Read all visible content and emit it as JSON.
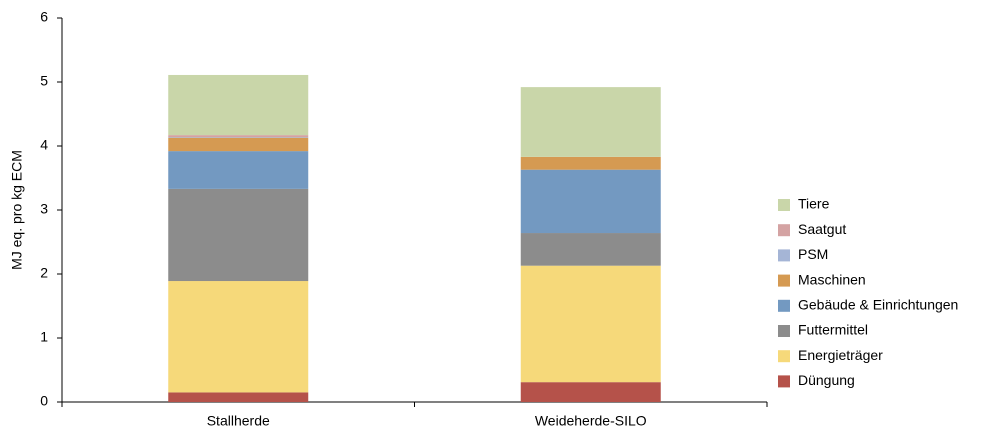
{
  "chart_data": {
    "type": "stacked_bar",
    "y_label": "MJ eq. pro kg ECM",
    "categories": [
      "Stallherde",
      "Weideherde-SILO"
    ],
    "series": [
      {
        "name": "Düngung",
        "color": "#b5524a",
        "values": [
          0.15,
          0.31
        ]
      },
      {
        "name": "Energieträger",
        "color": "#f6d97a",
        "values": [
          1.74,
          1.82
        ]
      },
      {
        "name": "Futtermittel",
        "color": "#8c8c8c",
        "values": [
          1.44,
          0.51
        ]
      },
      {
        "name": "Gebäude & Einrichtungen",
        "color": "#7399c1",
        "values": [
          0.59,
          0.99
        ]
      },
      {
        "name": "Maschinen",
        "color": "#d59a52",
        "values": [
          0.21,
          0.2
        ]
      },
      {
        "name": "PSM",
        "color": "#a5b5d6",
        "values": [
          0.01,
          0
        ]
      },
      {
        "name": "Saatgut",
        "color": "#d4a3a3",
        "values": [
          0.03,
          0
        ]
      },
      {
        "name": "Tiere",
        "color": "#c9d6a9",
        "values": [
          0.94,
          1.09
        ]
      }
    ],
    "ylim": [
      0,
      6
    ],
    "yticks": [
      0,
      1,
      2,
      3,
      4,
      5,
      6
    ],
    "grid": false,
    "legend": "right"
  }
}
